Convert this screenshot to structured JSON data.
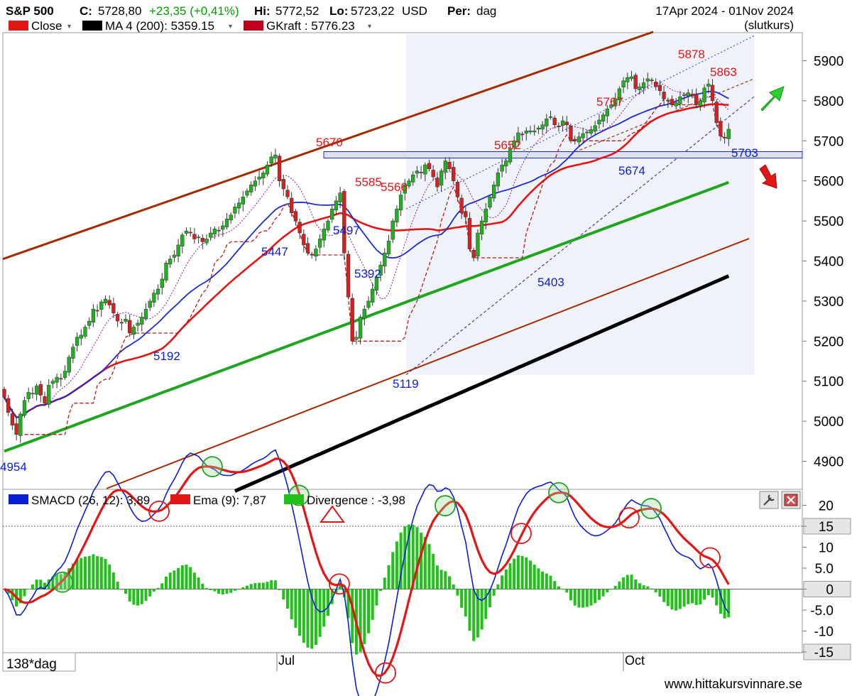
{
  "header": {
    "symbol": "S&P 500",
    "close_label": "C:",
    "close_value": "5728,80",
    "change": "+23,35 (+0,41%)",
    "hi_label": "Hi:",
    "hi_value": "5772,52",
    "lo_label": "Lo:",
    "lo_value": "5723,22",
    "currency": "USD",
    "per_label": "Per:",
    "per_value": "dag",
    "date_range": "17Apr 2024 - 01Nov 2024",
    "close_mode": "(slutkurs)",
    "colors": {
      "up": "#00a000",
      "neutral": "#000000"
    }
  },
  "legend": [
    {
      "label": "Close",
      "color": "#e31515"
    },
    {
      "label": "MA 4 (200): 5359.15",
      "color": "#000000"
    },
    {
      "label": "GKraft : 5776.23",
      "color": "#c0001a"
    }
  ],
  "indicator_legend": [
    {
      "label": "SMACD (26, 12): 3,89",
      "color": "#0a1fd0"
    },
    {
      "label": "Ema (9): 7,87",
      "color": "#e31515"
    },
    {
      "label": "Divergence : -3,98",
      "color": "#22c01a"
    }
  ],
  "footer": {
    "period_label": "138*dag",
    "x_labels": [
      "Jul",
      "Oct"
    ],
    "website": "www.hittakursvinnare.se"
  },
  "chart_data": [
    {
      "type": "candlestick",
      "title": "S&P 500",
      "ylim": [
        4830,
        5970
      ],
      "yticks": [
        4900,
        5000,
        5100,
        5200,
        5300,
        5400,
        5500,
        5600,
        5700,
        5800,
        5900
      ],
      "ytick_labels": [
        "4900",
        "5000",
        "5100",
        "5200",
        "5300",
        "5400",
        "5500",
        "5600",
        "5700",
        "5800",
        "5900"
      ],
      "xlabels": [
        "Jul",
        "Oct"
      ],
      "closes": [
        5060,
        5022,
        4990,
        4967,
        5018,
        5052,
        5072,
        5070,
        5088,
        5065,
        5045,
        5090,
        5100,
        5110,
        5105,
        5125,
        5160,
        5185,
        5210,
        5215,
        5235,
        5250,
        5280,
        5275,
        5298,
        5305,
        5290,
        5270,
        5250,
        5245,
        5255,
        5220,
        5235,
        5245,
        5260,
        5280,
        5300,
        5320,
        5330,
        5355,
        5395,
        5405,
        5415,
        5440,
        5465,
        5475,
        5470,
        5455,
        5460,
        5448,
        5455,
        5470,
        5480,
        5475,
        5488,
        5505,
        5515,
        5535,
        5545,
        5560,
        5575,
        5590,
        5600,
        5610,
        5620,
        5640,
        5660,
        5665,
        5600,
        5580,
        5560,
        5520,
        5500,
        5470,
        5440,
        5420,
        5415,
        5430,
        5455,
        5480,
        5500,
        5530,
        5550,
        5570,
        5420,
        5310,
        5200,
        5210,
        5260,
        5280,
        5300,
        5330,
        5360,
        5390,
        5420,
        5450,
        5500,
        5530,
        5565,
        5590,
        5600,
        5615,
        5625,
        5620,
        5640,
        5630,
        5610,
        5585,
        5625,
        5650,
        5630,
        5600,
        5560,
        5520,
        5510,
        5430,
        5408,
        5470,
        5500,
        5530,
        5560,
        5590,
        5620,
        5640,
        5650,
        5680,
        5700,
        5720,
        5715,
        5725,
        5725,
        5725,
        5732,
        5740,
        5755,
        5760,
        5740,
        5735,
        5750,
        5740,
        5700,
        5700,
        5710,
        5718,
        5722,
        5728,
        5738,
        5752,
        5765,
        5780,
        5790,
        5805,
        5830,
        5850,
        5858,
        5860,
        5830,
        5835,
        5845,
        5855,
        5850,
        5835,
        5825,
        5805,
        5800,
        5790,
        5795,
        5810,
        5815,
        5820,
        5812,
        5790,
        5800,
        5832,
        5842,
        5800,
        5745,
        5712,
        5708,
        5729
      ],
      "series": [
        {
          "name": "Close",
          "color": "#e31515"
        },
        {
          "name": "MA 4 (200)",
          "value": 5359.15,
          "color": "#000000"
        },
        {
          "name": "GKraft",
          "value": 5776.23,
          "color": "#c0001a"
        }
      ],
      "annotations": [
        {
          "text": "5670",
          "color": "#e31515"
        },
        {
          "text": "5585",
          "color": "#e31515"
        },
        {
          "text": "5566",
          "color": "#e31515"
        },
        {
          "text": "5652",
          "color": "#e31515"
        },
        {
          "text": "5767",
          "color": "#e31515"
        },
        {
          "text": "5878",
          "color": "#e31515"
        },
        {
          "text": "5863",
          "color": "#e31515"
        },
        {
          "text": "4954",
          "color": "#0a1fd0"
        },
        {
          "text": "5192",
          "color": "#0a1fd0"
        },
        {
          "text": "5447",
          "color": "#0a1fd0"
        },
        {
          "text": "5497",
          "color": "#0a1fd0"
        },
        {
          "text": "5392",
          "color": "#0a1fd0"
        },
        {
          "text": "5119",
          "color": "#0a1fd0"
        },
        {
          "text": "5403",
          "color": "#0a1fd0"
        },
        {
          "text": "5674",
          "color": "#0a1fd0"
        },
        {
          "text": "5703",
          "color": "#0a1fd0"
        }
      ],
      "support_band": [
        5657,
        5673
      ],
      "grid": false
    },
    {
      "type": "line",
      "title": "SMACD (26, 12)",
      "ylim": [
        -14,
        20
      ],
      "yticks": [
        -15,
        -10,
        -5,
        0,
        5,
        10,
        15,
        20
      ],
      "ytick_labels": [
        "-15",
        "-10",
        "-5.0",
        "0",
        "5.0",
        "10",
        "15",
        "20"
      ],
      "series": [
        {
          "name": "SMACD (26, 12)",
          "value": 3.89,
          "color": "#0a1fd0"
        },
        {
          "name": "Ema (9)",
          "value": 7.87,
          "color": "#e31515"
        },
        {
          "name": "Divergence",
          "value": -3.98,
          "color": "#22c01a"
        }
      ]
    }
  ]
}
